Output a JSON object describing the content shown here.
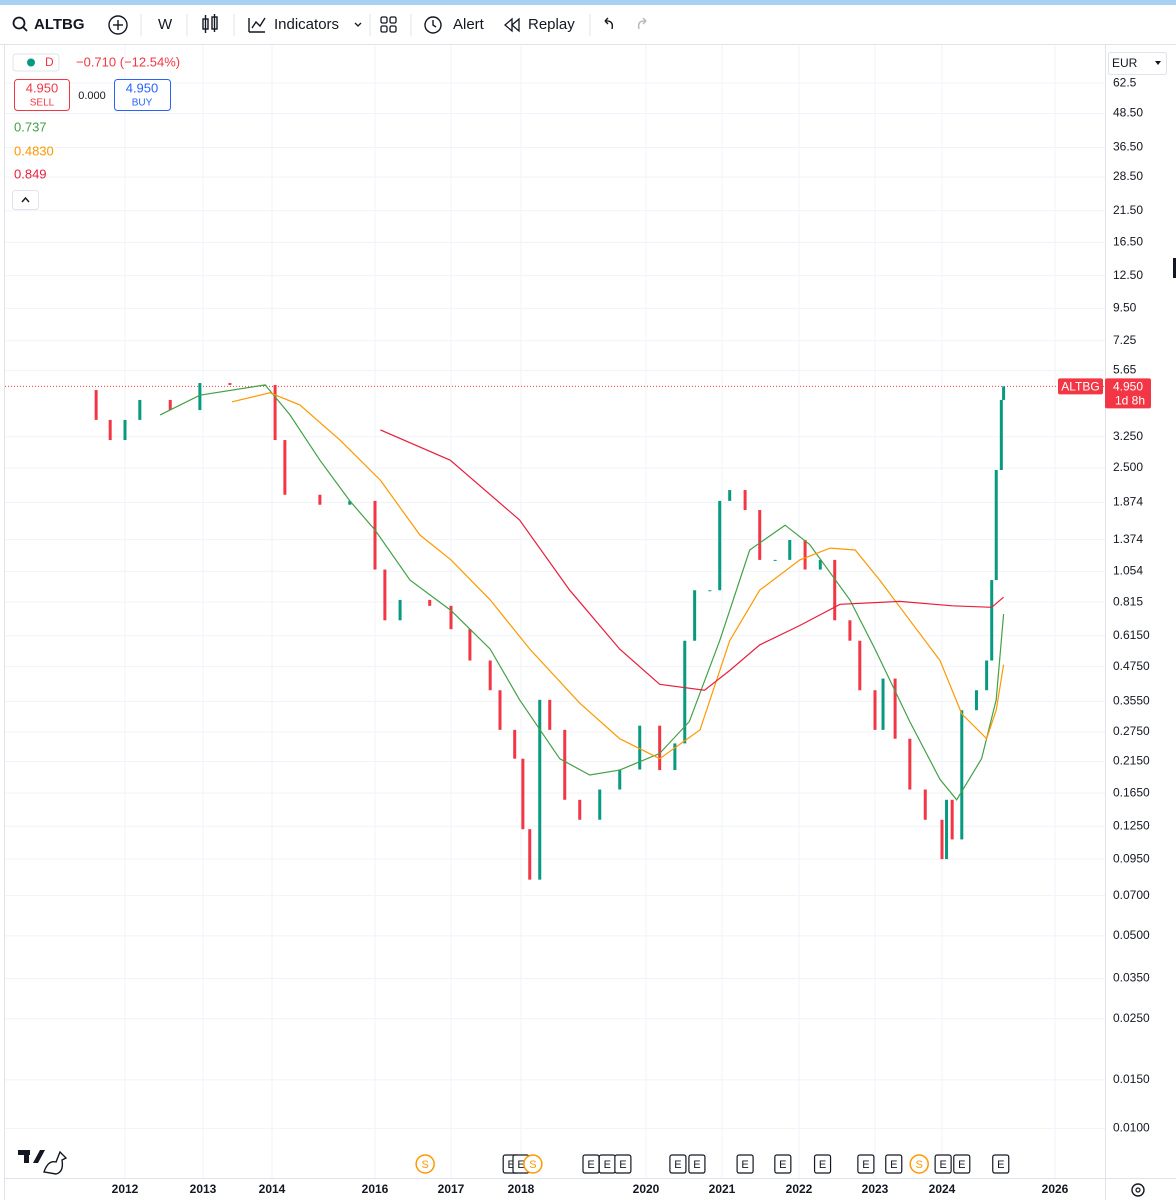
{
  "toolbar": {
    "symbol": "ALTBG",
    "interval": "W",
    "indicators": "Indicators",
    "alert": "Alert",
    "replay": "Replay"
  },
  "legend": {
    "timeframe": "D",
    "change": "−0.710 (−12.54%)",
    "sell_price": "4.950",
    "sell": "SELL",
    "spread": "0.000",
    "buy_price": "4.950",
    "buy": "BUY",
    "ma_values": [
      "0.737",
      "0.4830",
      "0.849"
    ]
  },
  "chart_data": {
    "type": "candlestick",
    "log_scale": true,
    "grid": true,
    "currency": "EUR",
    "ylim": [
      0.0066,
      86
    ],
    "yticks": [
      62.5,
      {
        "value": 48.5,
        "label": "48.50"
      },
      {
        "value": 36.5,
        "label": "36.50"
      },
      {
        "value": 28.5,
        "label": "28.50"
      },
      {
        "value": 21.5,
        "label": "21.50"
      },
      {
        "value": 16.5,
        "label": "16.50"
      },
      {
        "value": 12.5,
        "label": "12.50"
      },
      {
        "value": 9.5,
        "label": "9.50"
      },
      7.25,
      5.65,
      {
        "value": 3.25,
        "label": "3.250"
      },
      {
        "value": 2.5,
        "label": "2.500"
      },
      1.874,
      1.374,
      1.054,
      0.815,
      {
        "value": 0.615,
        "label": "0.6150"
      },
      {
        "value": 0.475,
        "label": "0.4750"
      },
      {
        "value": 0.355,
        "label": "0.3550"
      },
      {
        "value": 0.275,
        "label": "0.2750"
      },
      {
        "value": 0.215,
        "label": "0.2150"
      },
      {
        "value": 0.165,
        "label": "0.1650"
      },
      {
        "value": 0.125,
        "label": "0.1250"
      },
      {
        "value": 0.095,
        "label": "0.0950"
      },
      {
        "value": 0.07,
        "label": "0.0700"
      },
      {
        "value": 0.05,
        "label": "0.0500"
      },
      {
        "value": 0.035,
        "label": "0.0350"
      },
      {
        "value": 0.025,
        "label": "0.0250"
      },
      {
        "value": 0.015,
        "label": "0.0150"
      },
      {
        "value": 0.01,
        "label": "0.0100"
      }
    ],
    "xticks": [
      2012,
      2013,
      2014,
      2016,
      2017,
      2018,
      2020,
      2021,
      2022,
      2023,
      2024,
      2026
    ],
    "series": [
      {
        "up_color": "#089981",
        "down_color": "#f23645",
        "x": [
          2011.5,
          2011.63,
          2011.81,
          2012.0,
          2012.19,
          2012.58,
          2012.96,
          2013.39,
          2013.9,
          2014.06,
          2014.25,
          2014.93,
          2015.51,
          2016.0,
          2016.13,
          2016.33,
          2016.72,
          2017.0,
          2017.27,
          2017.56,
          2017.7,
          2017.91,
          2018.03,
          2018.14,
          2018.3,
          2018.46,
          2018.7,
          2018.94,
          2019.26,
          2019.58,
          2019.9,
          2020.18,
          2020.38,
          2020.51,
          2020.64,
          2020.84,
          2020.97,
          2021.1,
          2021.3,
          2021.49,
          2021.69,
          2021.88,
          2022.08,
          2022.28,
          2022.47,
          2022.67,
          2022.8,
          2023.0,
          2023.12,
          2023.3,
          2023.52,
          2023.75,
          2024.0,
          2024.08,
          2024.18,
          2024.35,
          2024.61,
          2024.79,
          2024.88,
          2024.96,
          2025.05,
          2025.09
        ],
        "values": [
          4.8,
          3.74,
          3.16,
          3.74,
          4.42,
          4.06,
          5.09,
          5.01,
          5.01,
          3.16,
          2.0,
          1.84,
          1.9,
          1.07,
          0.7,
          0.83,
          0.79,
          0.65,
          0.5,
          0.39,
          0.28,
          0.22,
          0.122,
          0.08,
          0.36,
          0.28,
          0.156,
          0.132,
          0.17,
          0.201,
          0.29,
          0.2,
          0.25,
          0.59,
          0.9,
          0.9,
          1.9,
          2.08,
          1.76,
          1.16,
          1.16,
          1.37,
          1.07,
          1.16,
          0.7,
          0.59,
          0.39,
          0.28,
          0.43,
          0.26,
          0.17,
          0.132,
          0.095,
          0.156,
          0.112,
          0.33,
          0.39,
          0.5,
          0.98,
          2.46,
          4.42,
          4.95
        ]
      },
      {
        "color": "#43a047",
        "x": [
          2012.45,
          2012.96,
          2013.9,
          2014.35,
          2014.93,
          2015.51,
          2016.0,
          2016.46,
          2017.0,
          2017.56,
          2017.98,
          2018.62,
          2019.1,
          2019.58,
          2020.18,
          2020.57,
          2020.97,
          2021.36,
          2021.82,
          2022.14,
          2022.67,
          2023.0,
          2023.52,
          2023.97,
          2024.26,
          2024.7,
          2024.96,
          2025.09
        ],
        "values": [
          3.9,
          4.6,
          5.01,
          3.9,
          2.67,
          1.9,
          1.49,
          0.98,
          0.76,
          0.55,
          0.36,
          0.22,
          0.192,
          0.2,
          0.23,
          0.3,
          0.59,
          1.26,
          1.55,
          1.32,
          0.83,
          0.55,
          0.3,
          0.185,
          0.156,
          0.22,
          0.36,
          0.737
        ]
      },
      {
        "color": "#ff9800",
        "x": [
          2013.42,
          2013.97,
          2014.54,
          2015.32,
          2016.07,
          2016.59,
          2017.0,
          2017.56,
          2018.14,
          2018.94,
          2019.58,
          2020.18,
          2020.71,
          2021.1,
          2021.49,
          2022.01,
          2022.41,
          2022.74,
          2023.07,
          2023.52,
          2023.97,
          2024.35,
          2024.79,
          2024.96,
          2025.09
        ],
        "values": [
          4.35,
          4.69,
          4.24,
          3.16,
          2.26,
          1.43,
          1.16,
          0.83,
          0.55,
          0.35,
          0.26,
          0.22,
          0.28,
          0.59,
          0.9,
          1.16,
          1.28,
          1.26,
          0.98,
          0.7,
          0.5,
          0.32,
          0.26,
          0.33,
          0.483
        ]
      },
      {
        "color": "#e91e3c",
        "x": [
          2016.07,
          2016.99,
          2017.98,
          2018.78,
          2019.58,
          2020.18,
          2020.77,
          2021.1,
          2021.49,
          2022.01,
          2022.54,
          2023.37,
          2024.18,
          2024.88,
          2025.09
        ],
        "values": [
          3.44,
          2.67,
          1.62,
          0.9,
          0.55,
          0.41,
          0.39,
          0.46,
          0.57,
          0.67,
          0.8,
          0.82,
          0.79,
          0.78,
          0.849
        ]
      }
    ],
    "last_price": {
      "value": 4.95,
      "label": "4.950",
      "countdown": "1d 8h",
      "color": "#f23645"
    },
    "events": [
      {
        "x": 2016.66,
        "label": "S",
        "color": "#ff9800"
      },
      {
        "x": 2017.86,
        "label": "E",
        "color": "#131722"
      },
      {
        "x": 2018.0,
        "label": "E",
        "color": "#131722"
      },
      {
        "x": 2018.19,
        "label": "S",
        "color": "#ff9800"
      },
      {
        "x": 2019.12,
        "label": "E",
        "color": "#131722"
      },
      {
        "x": 2019.38,
        "label": "E",
        "color": "#131722"
      },
      {
        "x": 2019.63,
        "label": "E",
        "color": "#131722"
      },
      {
        "x": 2020.42,
        "label": "E",
        "color": "#131722"
      },
      {
        "x": 2020.67,
        "label": "E",
        "color": "#131722"
      },
      {
        "x": 2021.3,
        "label": "E",
        "color": "#131722"
      },
      {
        "x": 2021.79,
        "label": "E",
        "color": "#131722"
      },
      {
        "x": 2022.31,
        "label": "E",
        "color": "#131722"
      },
      {
        "x": 2022.88,
        "label": "E",
        "color": "#131722"
      },
      {
        "x": 2023.28,
        "label": "E",
        "color": "#131722"
      },
      {
        "x": 2023.66,
        "label": "S",
        "color": "#ff9800"
      },
      {
        "x": 2024.02,
        "label": "E",
        "color": "#131722"
      },
      {
        "x": 2024.35,
        "label": "E",
        "color": "#131722"
      },
      {
        "x": 2025.04,
        "label": "E",
        "color": "#131722"
      }
    ]
  }
}
